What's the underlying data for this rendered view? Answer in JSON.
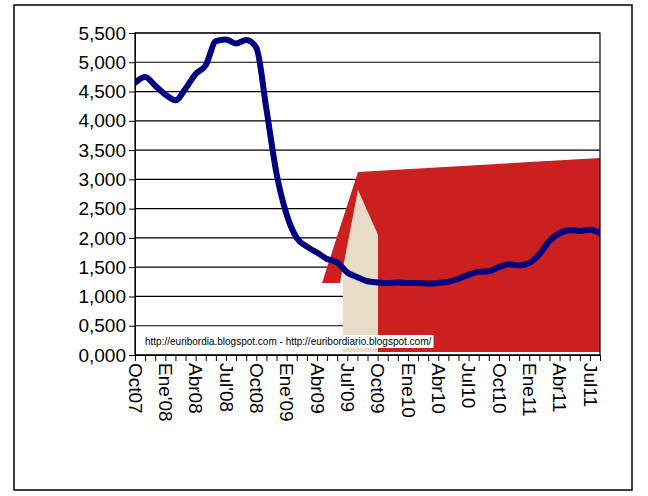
{
  "chart_data": {
    "type": "line",
    "categories": [
      "Oct07",
      null,
      null,
      "Ene'08",
      null,
      null,
      "Abr08",
      null,
      null,
      "Jul'08",
      null,
      null,
      "Oct08",
      null,
      null,
      "Ene'09",
      null,
      null,
      "Abr09",
      null,
      null,
      "Jul'09",
      null,
      null,
      "Oct09",
      null,
      null,
      "Ene10",
      null,
      null,
      "Abr10",
      null,
      null,
      "Jul10",
      null,
      null,
      "Oct10",
      null,
      null,
      "Ene11",
      null,
      null,
      "Abr11",
      null,
      null,
      "Jul11",
      null
    ],
    "values": [
      4.65,
      4.75,
      4.6,
      4.45,
      4.35,
      4.55,
      4.8,
      4.95,
      5.36,
      5.39,
      5.32,
      5.38,
      5.25,
      4.2,
      3.1,
      2.4,
      2.0,
      1.85,
      1.75,
      1.64,
      1.58,
      1.41,
      1.33,
      1.26,
      1.24,
      1.23,
      1.24,
      1.23,
      1.23,
      1.22,
      1.23,
      1.25,
      1.3,
      1.37,
      1.42,
      1.43,
      1.5,
      1.55,
      1.53,
      1.57,
      1.72,
      1.95,
      2.08,
      2.13,
      2.12,
      2.14,
      2.08
    ],
    "color": "#00007f",
    "ylim": [
      0,
      5.5
    ],
    "yticks": [
      {
        "value": 0,
        "label": "0,000"
      },
      {
        "value": 0.5,
        "label": "0,500"
      },
      {
        "value": 1,
        "label": "1,000"
      },
      {
        "value": 1.5,
        "label": "1,500"
      },
      {
        "value": 2,
        "label": "2,000"
      },
      {
        "value": 2.5,
        "label": "2,500"
      },
      {
        "value": 3,
        "label": "3,000"
      },
      {
        "value": 3.5,
        "label": "3,500"
      },
      {
        "value": 4,
        "label": "4,000"
      },
      {
        "value": 4.5,
        "label": "4,500"
      },
      {
        "value": 5,
        "label": "5,000"
      },
      {
        "value": 5.5,
        "label": "5,500"
      }
    ],
    "grid": true,
    "annotations": [
      "http://euribordia.blogspot.com - http://euribordiario.blogspot.com/"
    ]
  }
}
